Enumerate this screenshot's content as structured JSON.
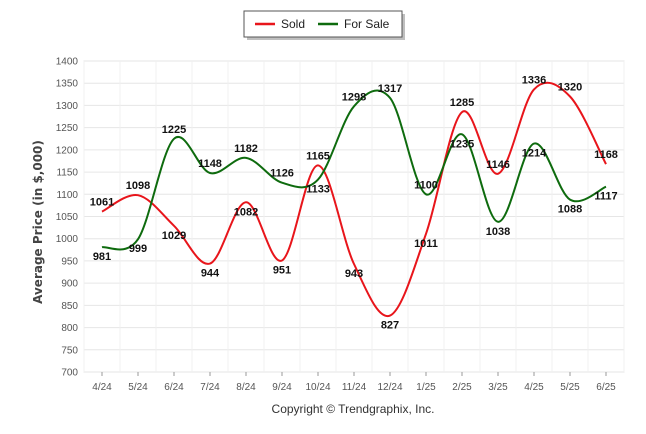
{
  "chart_data": {
    "type": "line",
    "ylabel": "Average Price (in $,000)",
    "credit": "Copyright © Trendgraphix, Inc.",
    "categories": [
      "4/24",
      "5/24",
      "6/24",
      "7/24",
      "8/24",
      "9/24",
      "10/24",
      "11/24",
      "12/24",
      "1/25",
      "2/25",
      "3/25",
      "4/25",
      "5/25",
      "6/25"
    ],
    "ylim": [
      700,
      1400
    ],
    "yticks": [
      700,
      750,
      800,
      850,
      900,
      950,
      1000,
      1050,
      1100,
      1150,
      1200,
      1250,
      1300,
      1350,
      1400
    ],
    "grid": true,
    "legend": "top-center",
    "series": [
      {
        "name": "Sold",
        "color": "#e8151b",
        "values": [
          1061,
          1098,
          1029,
          944,
          1082,
          951,
          1165,
          943,
          827,
          1011,
          1285,
          1146,
          1336,
          1320,
          1168
        ]
      },
      {
        "name": "For Sale",
        "color": "#0e6b0e",
        "values": [
          981,
          999,
          1225,
          1148,
          1182,
          1126,
          1133,
          1298,
          1317,
          1100,
          1235,
          1038,
          1214,
          1088,
          1117
        ]
      }
    ]
  }
}
